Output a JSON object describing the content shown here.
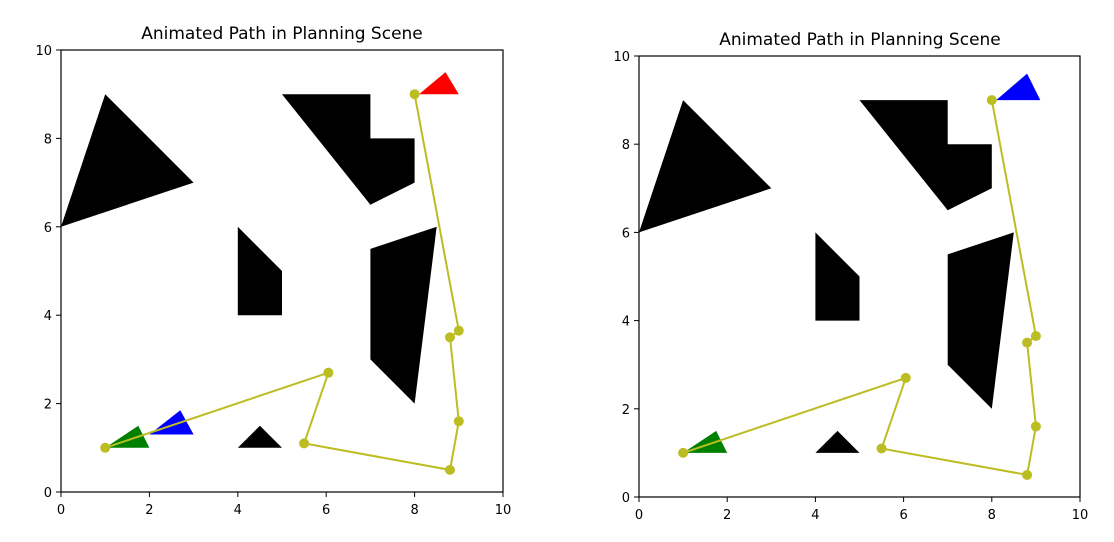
{
  "chart_data": [
    {
      "type": "scatter",
      "title": "Animated Path in Planning Scene",
      "xlabel": "",
      "ylabel": "",
      "xlim": [
        0,
        10
      ],
      "ylim": [
        0,
        10
      ],
      "xticks": [
        "0",
        "2",
        "4",
        "6",
        "8",
        "10"
      ],
      "yticks": [
        "0",
        "2",
        "4",
        "6",
        "8",
        "10"
      ],
      "grid": false,
      "obstacles": [
        {
          "points": [
            [
              0,
              6
            ],
            [
              1,
              9
            ],
            [
              3,
              7
            ]
          ]
        },
        {
          "points": [
            [
              5,
              9
            ],
            [
              7,
              9
            ],
            [
              7,
              8
            ],
            [
              8,
              8
            ],
            [
              8,
              7
            ],
            [
              7,
              6.5
            ]
          ]
        },
        {
          "points": [
            [
              4,
              6
            ],
            [
              5,
              5
            ],
            [
              5,
              4
            ],
            [
              4,
              4
            ]
          ]
        },
        {
          "points": [
            [
              7,
              5.5
            ],
            [
              8.5,
              6
            ],
            [
              8,
              2
            ],
            [
              7,
              3
            ]
          ]
        },
        {
          "points": [
            [
              4,
              1
            ],
            [
              4.5,
              1.5
            ],
            [
              5,
              1
            ]
          ]
        }
      ],
      "path": {
        "color": "#bcbd22",
        "points": [
          [
            1,
            1
          ],
          [
            6.05,
            2.7
          ],
          [
            5.5,
            1.1
          ],
          [
            8.8,
            0.5
          ],
          [
            9,
            1.6
          ],
          [
            8.8,
            3.5
          ],
          [
            9,
            3.65
          ],
          [
            8,
            9
          ]
        ]
      },
      "markers": [
        {
          "name": "start",
          "color": "#008000",
          "points": [
            [
              1,
              1
            ],
            [
              2,
              1
            ],
            [
              1.75,
              1.5
            ]
          ]
        },
        {
          "name": "goal",
          "color": "#ff0000",
          "points": [
            [
              8.1,
              9
            ],
            [
              9,
              9
            ],
            [
              8.7,
              9.5
            ]
          ]
        },
        {
          "name": "robot",
          "color": "#0000ff",
          "points": [
            [
              2,
              1.3
            ],
            [
              3,
              1.3
            ],
            [
              2.7,
              1.85
            ]
          ]
        }
      ]
    },
    {
      "type": "scatter",
      "title": "Animated Path in Planning Scene",
      "xlabel": "",
      "ylabel": "",
      "xlim": [
        0,
        10
      ],
      "ylim": [
        0,
        10
      ],
      "xticks": [
        "0",
        "2",
        "4",
        "6",
        "8",
        "10"
      ],
      "yticks": [
        "0",
        "2",
        "4",
        "6",
        "8",
        "10"
      ],
      "grid": false,
      "obstacles": [
        {
          "points": [
            [
              0,
              6
            ],
            [
              1,
              9
            ],
            [
              3,
              7
            ]
          ]
        },
        {
          "points": [
            [
              5,
              9
            ],
            [
              7,
              9
            ],
            [
              7,
              8
            ],
            [
              8,
              8
            ],
            [
              8,
              7
            ],
            [
              7,
              6.5
            ]
          ]
        },
        {
          "points": [
            [
              4,
              6
            ],
            [
              5,
              5
            ],
            [
              5,
              4
            ],
            [
              4,
              4
            ]
          ]
        },
        {
          "points": [
            [
              7,
              5.5
            ],
            [
              8.5,
              6
            ],
            [
              8,
              2
            ],
            [
              7,
              3
            ]
          ]
        },
        {
          "points": [
            [
              4,
              1
            ],
            [
              4.5,
              1.5
            ],
            [
              5,
              1
            ]
          ]
        }
      ],
      "path": {
        "color": "#bcbd22",
        "points": [
          [
            1,
            1
          ],
          [
            6.05,
            2.7
          ],
          [
            5.5,
            1.1
          ],
          [
            8.8,
            0.5
          ],
          [
            9,
            1.6
          ],
          [
            8.8,
            3.5
          ],
          [
            9,
            3.65
          ],
          [
            8,
            9
          ]
        ]
      },
      "markers": [
        {
          "name": "start",
          "color": "#008000",
          "points": [
            [
              1,
              1
            ],
            [
              2,
              1
            ],
            [
              1.75,
              1.5
            ]
          ]
        },
        {
          "name": "robot",
          "color": "#0000ff",
          "points": [
            [
              8.1,
              9
            ],
            [
              9.1,
              9
            ],
            [
              8.8,
              9.6
            ]
          ]
        }
      ]
    }
  ]
}
